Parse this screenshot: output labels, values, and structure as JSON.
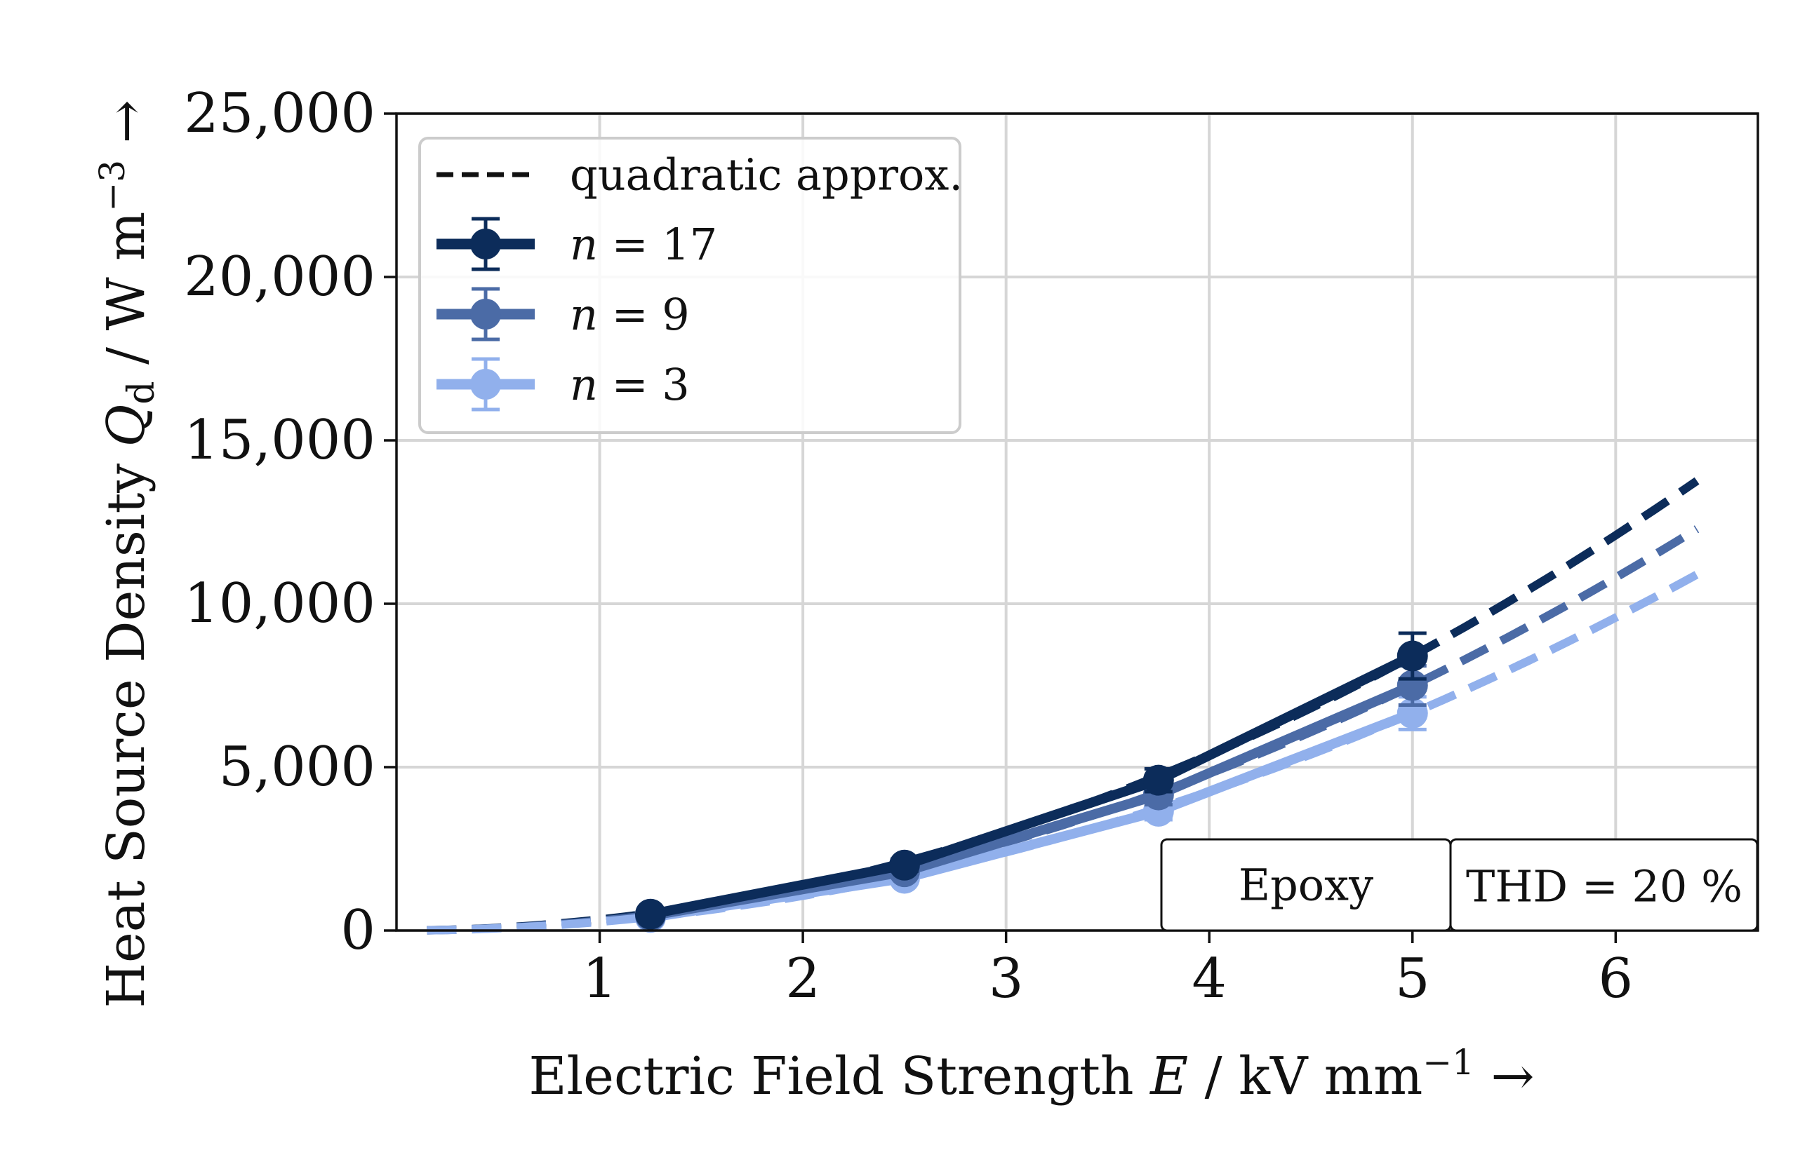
{
  "chart_data": {
    "type": "line",
    "xlabel": "Electric Field Strength E / kV mm⁻¹ →",
    "ylabel": "Heat Source Density Q_d / W m⁻³ →",
    "xlabel_parts": {
      "main": "Electric Field Strength ",
      "var": "E",
      "unit": " / kV mm",
      "exp": "−1",
      "arrow": " →"
    },
    "ylabel_parts": {
      "main": "Heat Source Density ",
      "var": "Q",
      "sub": "d",
      "unit": " / W m",
      "exp": "−3",
      "arrow": " →"
    },
    "xlim": [
      0,
      6.7
    ],
    "ylim": [
      0,
      25000
    ],
    "xticks": [
      1,
      2,
      3,
      4,
      5,
      6
    ],
    "xtick_labels": [
      "1",
      "2",
      "3",
      "4",
      "5",
      "6"
    ],
    "yticks": [
      0,
      5000,
      10000,
      15000,
      20000,
      25000
    ],
    "ytick_labels": [
      "0",
      "5,000",
      "10,000",
      "15,000",
      "20,000",
      "25,000"
    ],
    "grid": true,
    "legend_position": "top-left",
    "legend": [
      {
        "label": "quadratic approx.",
        "style": "dashed",
        "color": "#111111"
      },
      {
        "label_var": "n",
        "label_rest": " = 17",
        "color": "#0c2c5a"
      },
      {
        "label_var": "n",
        "label_rest": " = 9",
        "color": "#4b6ba6"
      },
      {
        "label_var": "n",
        "label_rest": " = 3",
        "color": "#91b0ec"
      }
    ],
    "series": [
      {
        "name": "n = 17",
        "color": "#0c2c5a",
        "x": [
          1.25,
          2.5,
          3.75,
          5.0
        ],
        "y": [
          500,
          2000,
          4600,
          8400
        ],
        "yerr": [
          80,
          180,
          350,
          700
        ],
        "quad_coef": 336
      },
      {
        "name": "n = 9",
        "color": "#4b6ba6",
        "x": [
          1.25,
          2.5,
          3.75,
          5.0
        ],
        "y": [
          450,
          1800,
          4150,
          7500
        ],
        "yerr": [
          70,
          160,
          300,
          600
        ],
        "quad_coef": 300
      },
      {
        "name": "n = 3",
        "color": "#91b0ec",
        "x": [
          1.25,
          2.5,
          3.75,
          5.0
        ],
        "y": [
          400,
          1600,
          3650,
          6650
        ],
        "yerr": [
          60,
          140,
          260,
          500
        ],
        "quad_coef": 266
      }
    ],
    "quad_xrange": [
      0.15,
      6.4
    ],
    "annotations": [
      {
        "text": "Epoxy"
      },
      {
        "text": "THD = 20 %"
      }
    ]
  }
}
